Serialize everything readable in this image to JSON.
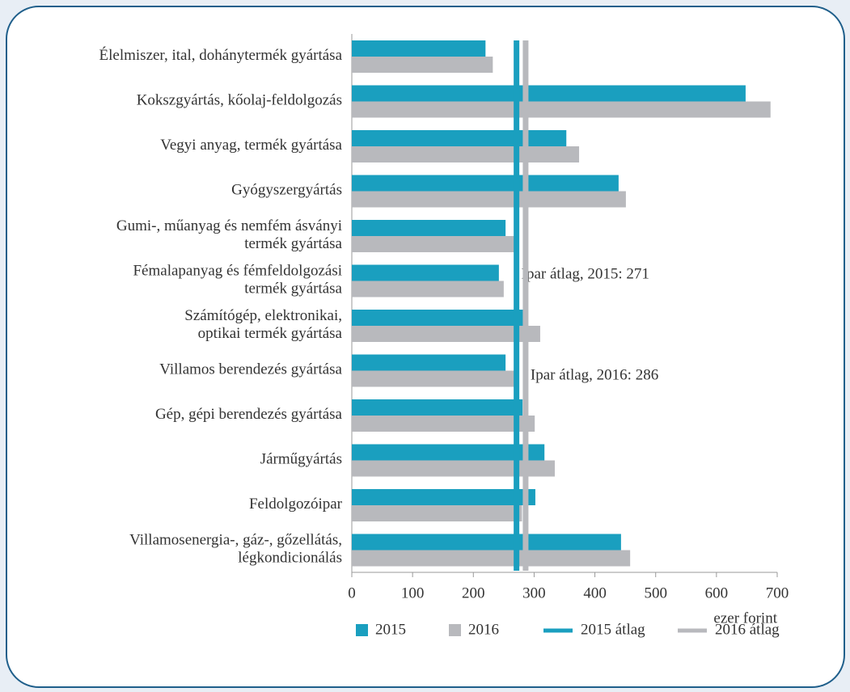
{
  "chart_data": {
    "type": "bar",
    "orientation": "horizontal",
    "categories": [
      "Élelmiszer, ital, dohánytermék gyártása",
      "Kokszgyártás, kőolaj-feldolgozás",
      "Vegyi anyag, termék gyártása",
      "Gyógyszergyártás",
      "Gumi-, műanyag és nemfém ásványi\ntermék gyártása",
      "Fémalapanyag és fémfeldolgozási\ntermék gyártása",
      "Számítógép, elektronikai,\noptikai termék gyártása",
      "Villamos berendezés gyártása",
      "Gép, gépi berendezés gyártása",
      "Járműgyártás",
      "Feldolgozóipar",
      "Villamosenergia-, gáz-, gőzellátás,\nlégkondicionálás"
    ],
    "series": [
      {
        "name": "2015",
        "color": "#1a9fbf",
        "values": [
          220,
          648,
          353,
          439,
          253,
          242,
          283,
          253,
          281,
          317,
          302,
          443
        ]
      },
      {
        "name": "2016",
        "color": "#b8b9bd",
        "values": [
          232,
          689,
          374,
          451,
          267,
          250,
          310,
          267,
          301,
          334,
          280,
          458
        ]
      }
    ],
    "reference_lines": [
      {
        "name": "2015 átlag",
        "color": "#1a9fbf",
        "value": 271,
        "annotation": "Ipar átlag, 2015: 271"
      },
      {
        "name": "2016 átlag",
        "color": "#b8b9bd",
        "value": 286,
        "annotation": "Ipar átlag, 2016: 286"
      }
    ],
    "xlim": [
      0,
      700
    ],
    "xticks": [
      0,
      100,
      200,
      300,
      400,
      500,
      600,
      700
    ],
    "xlabel": "ezer  forint",
    "grid": false,
    "legend": "bottom"
  }
}
